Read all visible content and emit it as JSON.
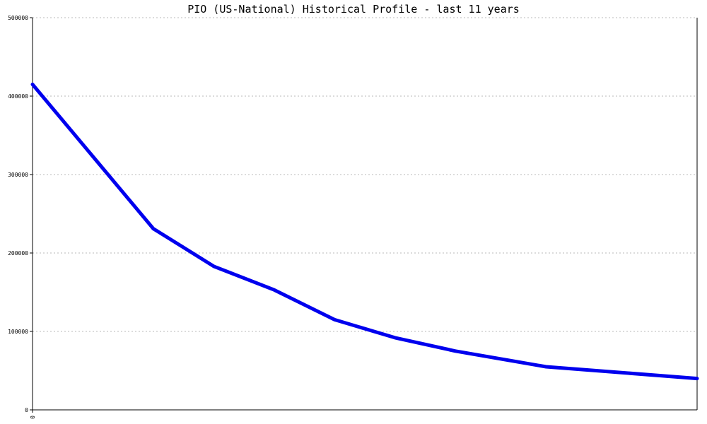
{
  "chart_data": {
    "type": "line",
    "title": "PIO (US-National) Historical Profile - last 11 years",
    "xlabel": "",
    "ylabel": "",
    "x_tick_labels": [
      "0"
    ],
    "y_ticks": [
      0,
      100000,
      200000,
      300000,
      400000,
      500000
    ],
    "y_tick_labels": [
      "0",
      "100000",
      "200000",
      "300000",
      "400000",
      "500000"
    ],
    "ylim": [
      0,
      500000
    ],
    "xlim": [
      0,
      11
    ],
    "grid": true,
    "series": [
      {
        "color": "#0000ee",
        "x": [
          0,
          2,
          3,
          4,
          5,
          6,
          7,
          8.5,
          11
        ],
        "values": [
          415000,
          231000,
          183000,
          153000,
          115000,
          92000,
          75000,
          55000,
          40000
        ]
      }
    ]
  }
}
